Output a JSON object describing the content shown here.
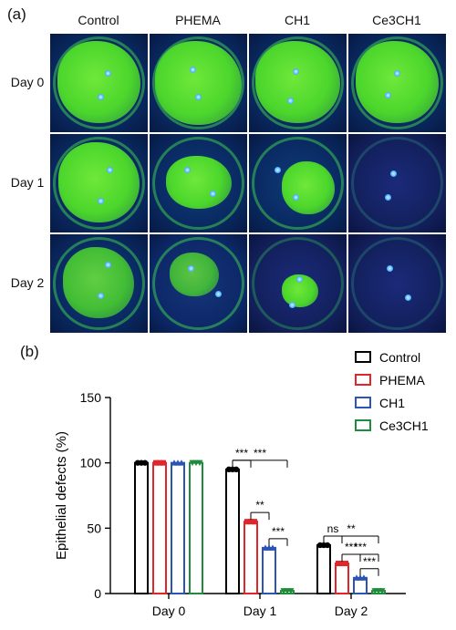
{
  "panel_a": {
    "label": "(a)",
    "columns": [
      "Control",
      "PHEMA",
      "CH1",
      "Ce3CH1"
    ],
    "rows": [
      "Day 0",
      "Day 1",
      "Day 2"
    ]
  },
  "panel_b": {
    "label": "(b)"
  },
  "colors": {
    "Control": "#000000",
    "PHEMA": "#e0262b",
    "CH1": "#2b55b4",
    "Ce3CH1": "#1f8c3b"
  },
  "chart_data": {
    "type": "bar",
    "categories": [
      "Day 0",
      "Day 1",
      "Day 2"
    ],
    "series": [
      {
        "name": "Control",
        "values": [
          100,
          95,
          37
        ]
      },
      {
        "name": "PHEMA",
        "values": [
          100,
          55,
          23
        ]
      },
      {
        "name": "CH1",
        "values": [
          100,
          35,
          12
        ]
      },
      {
        "name": "Ce3CH1",
        "values": [
          100,
          2,
          2
        ]
      }
    ],
    "xlabel": "",
    "ylabel": "Epithelial defects (%)",
    "ylim": [
      0,
      150
    ],
    "yticks": [
      0,
      50,
      100,
      150
    ],
    "legend_position": "top-right",
    "grid": false,
    "significance": [
      {
        "day": "Day 1",
        "from": "Control",
        "to": "PHEMA",
        "label": "***"
      },
      {
        "day": "Day 1",
        "from": "Control",
        "to": "Ce3CH1",
        "label": "***"
      },
      {
        "day": "Day 1",
        "from": "PHEMA",
        "to": "CH1",
        "label": "**"
      },
      {
        "day": "Day 1",
        "from": "CH1",
        "to": "Ce3CH1",
        "label": "***"
      },
      {
        "day": "Day 2",
        "from": "Control",
        "to": "PHEMA",
        "label": "ns"
      },
      {
        "day": "Day 2",
        "from": "Control",
        "to": "Ce3CH1",
        "label": "**"
      },
      {
        "day": "Day 2",
        "from": "PHEMA",
        "to": "Ce3CH1",
        "label": "***"
      },
      {
        "day": "Day 2",
        "from": "PHEMA",
        "to": "CH1",
        "label": "***"
      },
      {
        "day": "Day 2",
        "from": "CH1",
        "to": "Ce3CH1",
        "label": "***"
      }
    ]
  }
}
